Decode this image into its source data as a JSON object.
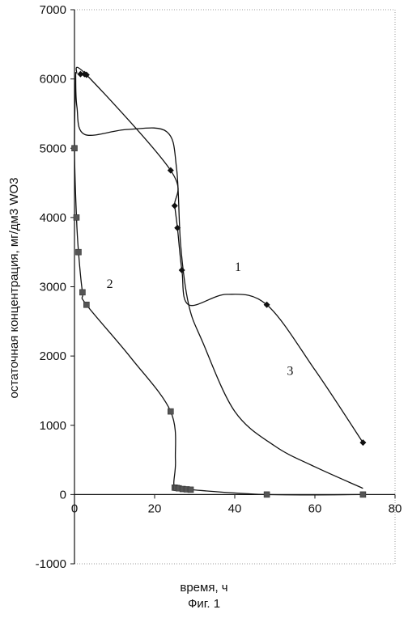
{
  "chart_data": {
    "type": "line",
    "xlabel": "время, ч",
    "ylabel": "остаточная концентрация, мг/дм3 WO3",
    "caption": "Фиг. 1",
    "xlim": [
      0,
      80
    ],
    "ylim": [
      -1000,
      7000
    ],
    "x_ticks": [
      0,
      20,
      40,
      60,
      80
    ],
    "y_ticks": [
      -1000,
      0,
      1000,
      2000,
      3000,
      4000,
      5000,
      6000,
      7000
    ],
    "grid": false,
    "series": [
      {
        "name": "1",
        "marker": "diamond",
        "points": [
          [
            1.5,
            6070
          ],
          [
            2.5,
            6070
          ],
          [
            3.0,
            6060
          ],
          [
            24.0,
            4680
          ],
          [
            25.0,
            4170
          ],
          [
            25.7,
            3850
          ],
          [
            26.8,
            3240
          ],
          [
            48,
            2740
          ],
          [
            72,
            750
          ]
        ],
        "path": [
          [
            0.5,
            6080
          ],
          [
            3.0,
            6060
          ],
          [
            24.0,
            4680
          ],
          [
            25.0,
            4170
          ],
          [
            25.7,
            3850
          ],
          [
            26.8,
            3240
          ],
          [
            28.5,
            2740
          ],
          [
            38,
            2890
          ],
          [
            48,
            2740
          ],
          [
            60,
            1800
          ],
          [
            72,
            750
          ]
        ]
      },
      {
        "name": "2",
        "marker": "square",
        "points": [
          [
            0,
            5000
          ],
          [
            0.5,
            4000
          ],
          [
            1.0,
            3500
          ],
          [
            2.0,
            2920
          ],
          [
            3.0,
            2740
          ],
          [
            24.0,
            1200
          ],
          [
            25.0,
            100
          ],
          [
            25.5,
            95
          ],
          [
            26.0,
            90
          ],
          [
            27.0,
            80
          ],
          [
            28.0,
            75
          ],
          [
            29.0,
            70
          ],
          [
            48,
            0
          ],
          [
            72,
            0
          ]
        ],
        "path": [
          [
            0.3,
            6100
          ],
          [
            0,
            5000
          ],
          [
            0.5,
            4000
          ],
          [
            1.0,
            3500
          ],
          [
            2.0,
            2920
          ],
          [
            3.0,
            2740
          ],
          [
            14,
            1980
          ],
          [
            24.0,
            1200
          ],
          [
            25.2,
            500
          ],
          [
            25.0,
            100
          ],
          [
            29.0,
            70
          ],
          [
            48,
            0
          ],
          [
            72,
            0
          ]
        ]
      },
      {
        "name": "3",
        "marker": "none",
        "path": [
          [
            0.3,
            6050
          ],
          [
            0.6,
            5600
          ],
          [
            2.5,
            5200
          ],
          [
            13,
            5270
          ],
          [
            23,
            5240
          ],
          [
            25.5,
            4700
          ],
          [
            26.5,
            3600
          ],
          [
            28.5,
            2740
          ],
          [
            32,
            2200
          ],
          [
            40,
            1200
          ],
          [
            50,
            700
          ],
          [
            60,
            400
          ],
          [
            72,
            90
          ]
        ]
      }
    ]
  }
}
